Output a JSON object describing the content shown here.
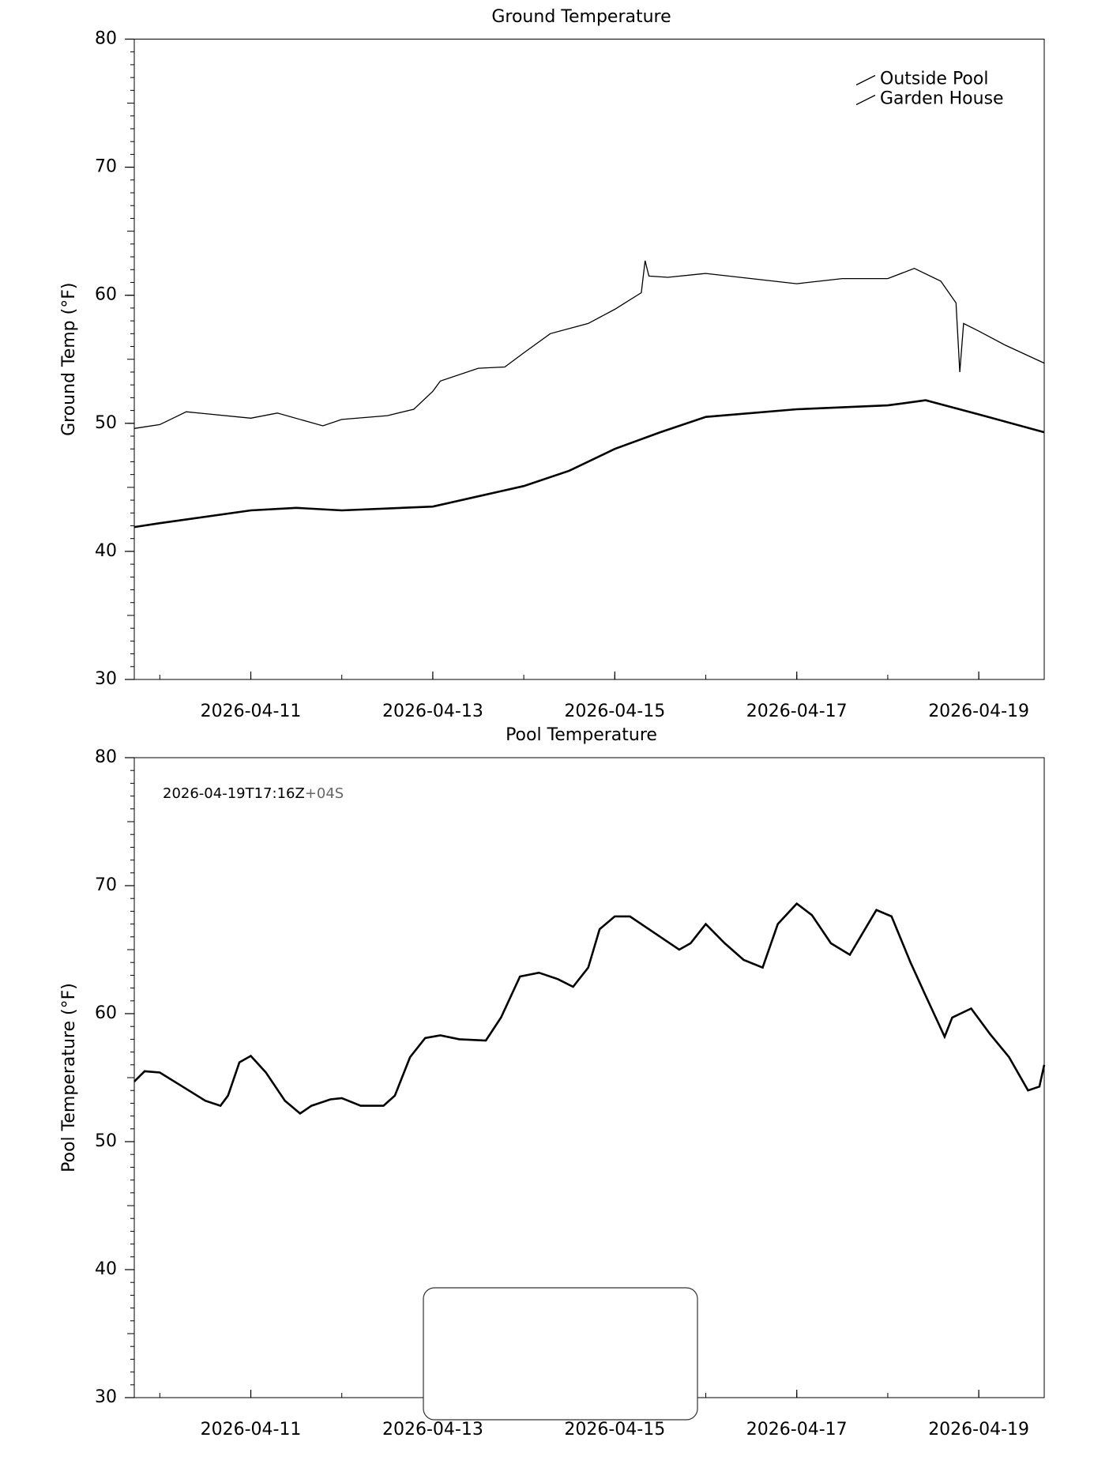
{
  "chart_data": [
    {
      "type": "line",
      "title": "Ground Temperature",
      "ylabel": "Ground Temp (°F)",
      "xlim": [
        "2026-04-09T17:16",
        "2026-04-19T17:16"
      ],
      "xticks": [
        "2026-04-11",
        "2026-04-13",
        "2026-04-15",
        "2026-04-17",
        "2026-04-19"
      ],
      "ylim": [
        30,
        80
      ],
      "yticks": [
        30,
        40,
        50,
        60,
        70,
        80
      ],
      "legend": "upper right",
      "series": [
        {
          "name": "Outside Pool",
          "color": "#000000",
          "line_width": 1.3,
          "x": [
            "2026-04-09T17:16",
            "2026-04-10T00:00",
            "2026-04-10T07:00",
            "2026-04-11T00:00",
            "2026-04-11T07:00",
            "2026-04-11T19:00",
            "2026-04-12T00:00",
            "2026-04-12T12:00",
            "2026-04-12T19:00",
            "2026-04-13T00:00",
            "2026-04-13T02:00",
            "2026-04-13T12:00",
            "2026-04-13T19:00",
            "2026-04-14T00:00",
            "2026-04-14T07:00",
            "2026-04-14T17:00",
            "2026-04-15T00:00",
            "2026-04-15T07:00",
            "2026-04-15T08:00",
            "2026-04-15T09:00",
            "2026-04-15T14:00",
            "2026-04-16T00:00",
            "2026-04-16T12:00",
            "2026-04-17T00:00",
            "2026-04-17T12:00",
            "2026-04-18T00:00",
            "2026-04-18T07:00",
            "2026-04-18T14:00",
            "2026-04-18T18:00",
            "2026-04-18T19:00",
            "2026-04-18T20:00",
            "2026-04-19T00:00",
            "2026-04-19T07:00",
            "2026-04-19T17:16"
          ],
          "values": [
            49.6,
            49.9,
            50.9,
            50.4,
            50.8,
            49.8,
            50.3,
            50.6,
            51.1,
            52.5,
            53.3,
            54.3,
            54.4,
            55.5,
            57.0,
            57.8,
            58.9,
            60.2,
            62.7,
            61.5,
            61.4,
            61.7,
            61.3,
            60.9,
            61.3,
            61.3,
            62.1,
            61.1,
            59.4,
            54.0,
            57.8,
            57.2,
            56.1,
            54.7
          ]
        },
        {
          "name": "Garden House",
          "color": "#000000",
          "line_width": 2.6,
          "x": [
            "2026-04-09T17:16",
            "2026-04-10T00:00",
            "2026-04-11T00:00",
            "2026-04-11T12:00",
            "2026-04-12T00:00",
            "2026-04-13T00:00",
            "2026-04-13T12:00",
            "2026-04-14T00:00",
            "2026-04-14T12:00",
            "2026-04-15T00:00",
            "2026-04-15T12:00",
            "2026-04-16T00:00",
            "2026-04-17T00:00",
            "2026-04-18T00:00",
            "2026-04-18T10:00",
            "2026-04-19T00:00",
            "2026-04-19T17:16"
          ],
          "values": [
            41.9,
            42.2,
            43.2,
            43.4,
            43.2,
            43.5,
            44.3,
            45.1,
            46.3,
            48.0,
            49.3,
            50.5,
            51.1,
            51.4,
            51.8,
            50.7,
            49.3
          ]
        }
      ]
    },
    {
      "type": "line",
      "title": "Pool Temperature",
      "ylabel": "Pool Temperature (°F)",
      "xlim": [
        "2026-04-09T17:16",
        "2026-04-19T17:16"
      ],
      "xticks": [
        "2026-04-11",
        "2026-04-13",
        "2026-04-15",
        "2026-04-17",
        "2026-04-19"
      ],
      "ylim": [
        30,
        80
      ],
      "yticks": [
        30,
        40,
        50,
        60,
        70,
        80
      ],
      "annotation": {
        "text": "2026-04-19T17:16Z",
        "suffix": "+04S"
      },
      "series": [
        {
          "color": "#000000",
          "line_width": 2.6,
          "x": [
            "2026-04-09T17:16",
            "2026-04-09T20:00",
            "2026-04-10T00:00",
            "2026-04-10T06:00",
            "2026-04-10T12:00",
            "2026-04-10T16:00",
            "2026-04-10T18:00",
            "2026-04-10T21:00",
            "2026-04-11T00:00",
            "2026-04-11T04:00",
            "2026-04-11T09:00",
            "2026-04-11T13:00",
            "2026-04-11T16:00",
            "2026-04-11T21:00",
            "2026-04-12T00:00",
            "2026-04-12T05:00",
            "2026-04-12T11:00",
            "2026-04-12T14:00",
            "2026-04-12T18:00",
            "2026-04-12T22:00",
            "2026-04-13T02:00",
            "2026-04-13T07:00",
            "2026-04-13T14:00",
            "2026-04-13T18:00",
            "2026-04-13T23:00",
            "2026-04-14T04:00",
            "2026-04-14T09:00",
            "2026-04-14T13:00",
            "2026-04-14T17:00",
            "2026-04-14T20:00",
            "2026-04-15T00:00",
            "2026-04-15T04:00",
            "2026-04-15T11:00",
            "2026-04-15T17:00",
            "2026-04-15T20:00",
            "2026-04-16T00:00",
            "2026-04-16T05:00",
            "2026-04-16T10:00",
            "2026-04-16T15:00",
            "2026-04-16T19:00",
            "2026-04-17T00:00",
            "2026-04-17T04:00",
            "2026-04-17T09:00",
            "2026-04-17T14:00",
            "2026-04-17T18:00",
            "2026-04-17T21:00",
            "2026-04-18T01:00",
            "2026-04-18T06:00",
            "2026-04-18T10:00",
            "2026-04-18T15:00",
            "2026-04-18T17:00",
            "2026-04-18T22:00",
            "2026-04-19T03:00",
            "2026-04-19T08:00",
            "2026-04-19T13:00",
            "2026-04-19T16:00",
            "2026-04-19T17:16"
          ],
          "values": [
            54.7,
            55.5,
            55.4,
            54.3,
            53.2,
            52.8,
            53.6,
            56.2,
            56.7,
            55.4,
            53.2,
            52.2,
            52.8,
            53.3,
            53.4,
            52.8,
            52.8,
            53.6,
            56.6,
            58.1,
            58.3,
            58.0,
            57.9,
            59.7,
            62.9,
            63.2,
            62.7,
            62.1,
            63.6,
            66.6,
            67.6,
            67.6,
            66.2,
            65.0,
            65.5,
            67.0,
            65.5,
            64.2,
            63.6,
            67.0,
            68.6,
            67.7,
            65.5,
            64.6,
            66.6,
            68.1,
            67.6,
            64.0,
            61.4,
            58.2,
            59.7,
            60.4,
            58.4,
            56.6,
            54.0,
            54.3,
            56.0
          ]
        }
      ]
    }
  ]
}
